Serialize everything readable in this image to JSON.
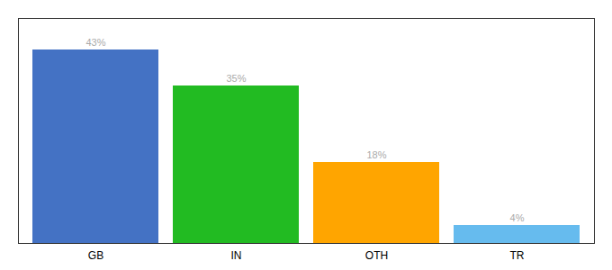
{
  "chart_data": {
    "type": "bar",
    "categories": [
      "GB",
      "IN",
      "OTH",
      "TR"
    ],
    "values": [
      43,
      35,
      18,
      4
    ],
    "value_labels": [
      "43%",
      "35%",
      "18%",
      "4%"
    ],
    "colors": [
      "#4472C4",
      "#22BB22",
      "#FFA500",
      "#66BBEE"
    ],
    "ylim": [
      0,
      50
    ],
    "yticks": [],
    "data_labels": true,
    "tick_labels": "x",
    "grid": false
  }
}
